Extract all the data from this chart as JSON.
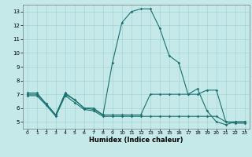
{
  "title": "",
  "xlabel": "Humidex (Indice chaleur)",
  "xlim": [
    -0.5,
    23.5
  ],
  "ylim": [
    4.5,
    13.5
  ],
  "yticks": [
    5,
    6,
    7,
    8,
    9,
    10,
    11,
    12,
    13
  ],
  "xticks": [
    0,
    1,
    2,
    3,
    4,
    5,
    6,
    7,
    8,
    9,
    10,
    11,
    12,
    13,
    14,
    15,
    16,
    17,
    18,
    19,
    20,
    21,
    22,
    23
  ],
  "background_color": "#c5e8e8",
  "grid_color": "#9fcfcf",
  "line_color": "#1a7070",
  "lines": [
    {
      "x": [
        0,
        1,
        2,
        3,
        4,
        5,
        6,
        7,
        8,
        9,
        10,
        11,
        12,
        13,
        14,
        15,
        16,
        17,
        18,
        19,
        20,
        21,
        22,
        23
      ],
      "y": [
        7.1,
        7.1,
        6.3,
        5.5,
        7.1,
        6.6,
        6.0,
        6.0,
        5.5,
        9.3,
        12.2,
        13.0,
        13.2,
        13.2,
        11.8,
        9.8,
        9.3,
        7.0,
        7.4,
        5.8,
        5.0,
        4.8,
        5.0,
        5.0
      ]
    },
    {
      "x": [
        0,
        1,
        2,
        3,
        4,
        5,
        6,
        7,
        8,
        9,
        10,
        11,
        12,
        13,
        14,
        15,
        16,
        17,
        18,
        19,
        20,
        21,
        22,
        23
      ],
      "y": [
        7.0,
        7.0,
        6.3,
        5.5,
        7.0,
        6.6,
        6.0,
        5.9,
        5.5,
        5.5,
        5.5,
        5.5,
        5.5,
        7.0,
        7.0,
        7.0,
        7.0,
        7.0,
        7.0,
        7.3,
        7.3,
        5.0,
        5.0,
        5.0
      ]
    },
    {
      "x": [
        0,
        1,
        2,
        3,
        4,
        5,
        6,
        7,
        8,
        9,
        10,
        11,
        12,
        13,
        14,
        15,
        16,
        17,
        18,
        19,
        20,
        21,
        22,
        23
      ],
      "y": [
        6.9,
        6.9,
        6.2,
        5.4,
        6.9,
        6.4,
        5.9,
        5.8,
        5.4,
        5.4,
        5.4,
        5.4,
        5.4,
        5.4,
        5.4,
        5.4,
        5.4,
        5.4,
        5.4,
        5.4,
        5.4,
        5.0,
        4.9,
        4.9
      ]
    }
  ],
  "tick_fontsize": 5,
  "xlabel_fontsize": 6,
  "xlabel_fontweight": "bold"
}
